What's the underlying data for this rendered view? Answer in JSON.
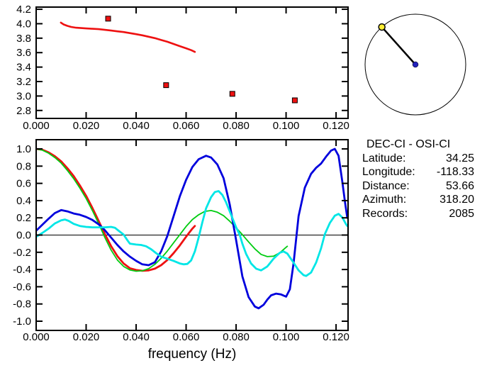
{
  "panel": {
    "title": "DEC-CI - OSI-CI",
    "rows": [
      {
        "label": "Latitude:",
        "value": "34.25"
      },
      {
        "label": "Longitude:",
        "value": "-118.33"
      },
      {
        "label": "Distance:",
        "value": "53.66"
      },
      {
        "label": "Azimuth:",
        "value": "318.20"
      },
      {
        "label": "Records:",
        "value": "2085"
      }
    ]
  },
  "azimuth_dial": {
    "azimuth_deg": 318.2,
    "circle_color": "#000000",
    "center_dot_color": "#2222bb",
    "end_dot_color": "#ffee33"
  },
  "colors": {
    "red": "#ee1111",
    "green": "#00cc11",
    "blue": "#0000dd",
    "cyan": "#00e6e6",
    "axis": "#000000"
  },
  "chart_data": [
    {
      "type": "line",
      "title": "phase velocity dispersion (top panel)",
      "xlabel": "",
      "ylabel": "",
      "xlim": [
        0,
        0.1248
      ],
      "ylim": [
        2.69,
        4.23
      ],
      "x_ticks": [
        0,
        0.02,
        0.04,
        0.06,
        0.08,
        0.1,
        0.12
      ],
      "x_tick_labels": [
        "0.000",
        "0.020",
        "0.040",
        "0.060",
        "0.080",
        "0.100",
        "0.120"
      ],
      "y_ticks": [
        2.8,
        3.0,
        3.2,
        3.4,
        3.6,
        3.8,
        4.0,
        4.2
      ],
      "y_tick_labels": [
        "2.8",
        "3.0",
        "3.2",
        "3.4",
        "3.6",
        "3.8",
        "4.0",
        "4.2"
      ],
      "grid": false,
      "zero_line": false,
      "series": [
        {
          "name": "dispersion-curve",
          "color": "#ee1111",
          "width": 2.6,
          "points": [
            [
              0.0099,
              4.015
            ],
            [
              0.011,
              3.99
            ],
            [
              0.0125,
              3.97
            ],
            [
              0.014,
              3.955
            ],
            [
              0.016,
              3.945
            ],
            [
              0.018,
              3.94
            ],
            [
              0.02,
              3.935
            ],
            [
              0.0225,
              3.93
            ],
            [
              0.025,
              3.925
            ],
            [
              0.0275,
              3.915
            ],
            [
              0.03,
              3.905
            ],
            [
              0.0325,
              3.895
            ],
            [
              0.035,
              3.885
            ],
            [
              0.0375,
              3.87
            ],
            [
              0.04,
              3.855
            ],
            [
              0.0425,
              3.84
            ],
            [
              0.045,
              3.82
            ],
            [
              0.0475,
              3.8
            ],
            [
              0.05,
              3.775
            ],
            [
              0.0525,
              3.75
            ],
            [
              0.055,
              3.72
            ],
            [
              0.0575,
              3.69
            ],
            [
              0.06,
              3.66
            ],
            [
              0.062,
              3.635
            ],
            [
              0.0635,
              3.61
            ]
          ]
        }
      ],
      "markers": {
        "name": "measurement-markers",
        "color": "#ee1111",
        "points": [
          [
            0.0288,
            4.07
          ],
          [
            0.052,
            3.15
          ],
          [
            0.0785,
            3.03
          ],
          [
            0.1035,
            2.94
          ]
        ]
      }
    },
    {
      "type": "line",
      "title": "normalized cross-correlation vs frequency (bottom panel)",
      "xlabel": "frequency (Hz)",
      "ylabel": "",
      "xlim": [
        0,
        0.1248
      ],
      "ylim": [
        -1.107,
        1.107
      ],
      "x_ticks": [
        0,
        0.02,
        0.04,
        0.06,
        0.08,
        0.1,
        0.12
      ],
      "x_tick_labels": [
        "0.000",
        "0.020",
        "0.040",
        "0.060",
        "0.080",
        "0.100",
        "0.120"
      ],
      "y_ticks": [
        -1.0,
        -0.8,
        -0.6,
        -0.4,
        -0.2,
        0.0,
        0.2,
        0.4,
        0.6,
        0.8,
        1.0
      ],
      "y_tick_labels": [
        "-1.0",
        "-0.8",
        "-0.6",
        "-0.4",
        "-0.2",
        "0.0",
        "0.2",
        "0.4",
        "0.6",
        "0.8",
        "1.0"
      ],
      "grid": false,
      "zero_line": true,
      "series": [
        {
          "name": "red-curve",
          "color": "#ee1111",
          "width": 2.8,
          "points": [
            [
              0,
              1.0
            ],
            [
              0.0025,
              0.99
            ],
            [
              0.005,
              0.96
            ],
            [
              0.0075,
              0.915
            ],
            [
              0.01,
              0.855
            ],
            [
              0.0125,
              0.775
            ],
            [
              0.015,
              0.685
            ],
            [
              0.0175,
              0.575
            ],
            [
              0.02,
              0.455
            ],
            [
              0.0225,
              0.315
            ],
            [
              0.025,
              0.165
            ],
            [
              0.0275,
              0.01
            ],
            [
              0.03,
              -0.13
            ],
            [
              0.0325,
              -0.245
            ],
            [
              0.035,
              -0.33
            ],
            [
              0.0375,
              -0.385
            ],
            [
              0.04,
              -0.405
            ],
            [
              0.0425,
              -0.415
            ],
            [
              0.045,
              -0.41
            ],
            [
              0.0475,
              -0.39
            ],
            [
              0.05,
              -0.35
            ],
            [
              0.0525,
              -0.29
            ],
            [
              0.055,
              -0.21
            ],
            [
              0.0575,
              -0.12
            ],
            [
              0.06,
              -0.02
            ],
            [
              0.0625,
              0.075
            ],
            [
              0.0635,
              0.105
            ]
          ]
        },
        {
          "name": "green-curve",
          "color": "#00cc11",
          "width": 1.8,
          "points": [
            [
              0,
              1.0
            ],
            [
              0.0025,
              0.985
            ],
            [
              0.005,
              0.95
            ],
            [
              0.0075,
              0.9
            ],
            [
              0.01,
              0.835
            ],
            [
              0.0125,
              0.75
            ],
            [
              0.015,
              0.655
            ],
            [
              0.0175,
              0.545
            ],
            [
              0.02,
              0.425
            ],
            [
              0.0225,
              0.285
            ],
            [
              0.025,
              0.135
            ],
            [
              0.0275,
              -0.03
            ],
            [
              0.03,
              -0.175
            ],
            [
              0.0325,
              -0.29
            ],
            [
              0.035,
              -0.365
            ],
            [
              0.0375,
              -0.405
            ],
            [
              0.04,
              -0.42
            ],
            [
              0.0425,
              -0.415
            ],
            [
              0.045,
              -0.39
            ],
            [
              0.0475,
              -0.34
            ],
            [
              0.05,
              -0.27
            ],
            [
              0.0525,
              -0.185
            ],
            [
              0.055,
              -0.09
            ],
            [
              0.0575,
              0.005
            ],
            [
              0.06,
              0.1
            ],
            [
              0.0625,
              0.18
            ],
            [
              0.065,
              0.235
            ],
            [
              0.0675,
              0.275
            ],
            [
              0.07,
              0.285
            ],
            [
              0.0725,
              0.265
            ],
            [
              0.075,
              0.225
            ],
            [
              0.0775,
              0.16
            ],
            [
              0.08,
              0.085
            ],
            [
              0.0825,
              0.005
            ],
            [
              0.085,
              -0.08
            ],
            [
              0.0875,
              -0.16
            ],
            [
              0.09,
              -0.225
            ],
            [
              0.0925,
              -0.25
            ],
            [
              0.095,
              -0.245
            ],
            [
              0.0975,
              -0.205
            ],
            [
              0.0995,
              -0.155
            ],
            [
              0.1005,
              -0.13
            ]
          ]
        },
        {
          "name": "blue-curve",
          "color": "#0000dd",
          "width": 2.8,
          "points": [
            [
              0,
              0.05
            ],
            [
              0.0025,
              0.12
            ],
            [
              0.005,
              0.19
            ],
            [
              0.0075,
              0.255
            ],
            [
              0.01,
              0.29
            ],
            [
              0.0125,
              0.275
            ],
            [
              0.015,
              0.25
            ],
            [
              0.0175,
              0.235
            ],
            [
              0.02,
              0.21
            ],
            [
              0.0225,
              0.175
            ],
            [
              0.025,
              0.125
            ],
            [
              0.0275,
              0.055
            ],
            [
              0.03,
              -0.03
            ],
            [
              0.0325,
              -0.115
            ],
            [
              0.035,
              -0.19
            ],
            [
              0.0375,
              -0.25
            ],
            [
              0.04,
              -0.3
            ],
            [
              0.0425,
              -0.34
            ],
            [
              0.045,
              -0.35
            ],
            [
              0.0475,
              -0.315
            ],
            [
              0.05,
              -0.19
            ],
            [
              0.0525,
              -0.01
            ],
            [
              0.055,
              0.22
            ],
            [
              0.0575,
              0.45
            ],
            [
              0.06,
              0.64
            ],
            [
              0.0625,
              0.79
            ],
            [
              0.065,
              0.88
            ],
            [
              0.068,
              0.92
            ],
            [
              0.07,
              0.9
            ],
            [
              0.0725,
              0.82
            ],
            [
              0.075,
              0.66
            ],
            [
              0.0775,
              0.35
            ],
            [
              0.08,
              -0.06
            ],
            [
              0.0825,
              -0.48
            ],
            [
              0.085,
              -0.72
            ],
            [
              0.0875,
              -0.83
            ],
            [
              0.089,
              -0.85
            ],
            [
              0.091,
              -0.81
            ],
            [
              0.0925,
              -0.75
            ],
            [
              0.094,
              -0.7
            ],
            [
              0.096,
              -0.68
            ],
            [
              0.098,
              -0.69
            ],
            [
              0.1,
              -0.715
            ],
            [
              0.1015,
              -0.63
            ],
            [
              0.103,
              -0.33
            ],
            [
              0.104,
              -0.05
            ],
            [
              0.105,
              0.22
            ],
            [
              0.1075,
              0.55
            ],
            [
              0.11,
              0.71
            ],
            [
              0.112,
              0.78
            ],
            [
              0.114,
              0.83
            ],
            [
              0.116,
              0.91
            ],
            [
              0.118,
              0.98
            ],
            [
              0.1195,
              1.0
            ],
            [
              0.121,
              0.92
            ],
            [
              0.1225,
              0.62
            ],
            [
              0.1235,
              0.4
            ],
            [
              0.1245,
              0.2
            ]
          ]
        },
        {
          "name": "cyan-curve",
          "color": "#00e6e6",
          "width": 2.8,
          "points": [
            [
              0,
              -0.02
            ],
            [
              0.0025,
              0.025
            ],
            [
              0.005,
              0.075
            ],
            [
              0.0075,
              0.135
            ],
            [
              0.01,
              0.17
            ],
            [
              0.0115,
              0.18
            ],
            [
              0.013,
              0.165
            ],
            [
              0.015,
              0.13
            ],
            [
              0.0175,
              0.105
            ],
            [
              0.02,
              0.095
            ],
            [
              0.0225,
              0.09
            ],
            [
              0.025,
              0.09
            ],
            [
              0.0275,
              0.09
            ],
            [
              0.03,
              0.095
            ],
            [
              0.0315,
              0.085
            ],
            [
              0.033,
              0.05
            ],
            [
              0.035,
              0.005
            ],
            [
              0.0365,
              -0.06
            ],
            [
              0.0375,
              -0.1
            ],
            [
              0.04,
              -0.11
            ],
            [
              0.042,
              -0.115
            ],
            [
              0.044,
              -0.13
            ],
            [
              0.046,
              -0.165
            ],
            [
              0.048,
              -0.21
            ],
            [
              0.05,
              -0.25
            ],
            [
              0.0525,
              -0.275
            ],
            [
              0.055,
              -0.3
            ],
            [
              0.0575,
              -0.33
            ],
            [
              0.059,
              -0.34
            ],
            [
              0.0605,
              -0.335
            ],
            [
              0.062,
              -0.295
            ],
            [
              0.0635,
              -0.19
            ],
            [
              0.065,
              -0.03
            ],
            [
              0.0665,
              0.15
            ],
            [
              0.068,
              0.31
            ],
            [
              0.07,
              0.44
            ],
            [
              0.0715,
              0.5
            ],
            [
              0.073,
              0.51
            ],
            [
              0.0745,
              0.465
            ],
            [
              0.076,
              0.38
            ],
            [
              0.078,
              0.235
            ],
            [
              0.08,
              0.09
            ],
            [
              0.0815,
              0.0
            ],
            [
              0.0825,
              -0.1
            ],
            [
              0.084,
              -0.22
            ],
            [
              0.086,
              -0.33
            ],
            [
              0.088,
              -0.39
            ],
            [
              0.09,
              -0.41
            ],
            [
              0.0925,
              -0.365
            ],
            [
              0.095,
              -0.275
            ],
            [
              0.0975,
              -0.205
            ],
            [
              0.099,
              -0.19
            ],
            [
              0.1005,
              -0.215
            ],
            [
              0.1025,
              -0.3
            ],
            [
              0.105,
              -0.41
            ],
            [
              0.107,
              -0.465
            ],
            [
              0.108,
              -0.475
            ],
            [
              0.11,
              -0.435
            ],
            [
              0.112,
              -0.32
            ],
            [
              0.114,
              -0.155
            ],
            [
              0.1155,
              0.01
            ],
            [
              0.1175,
              0.14
            ],
            [
              0.1195,
              0.225
            ],
            [
              0.121,
              0.245
            ],
            [
              0.1225,
              0.205
            ],
            [
              0.124,
              0.125
            ],
            [
              0.1245,
              0.105
            ]
          ]
        }
      ]
    }
  ]
}
